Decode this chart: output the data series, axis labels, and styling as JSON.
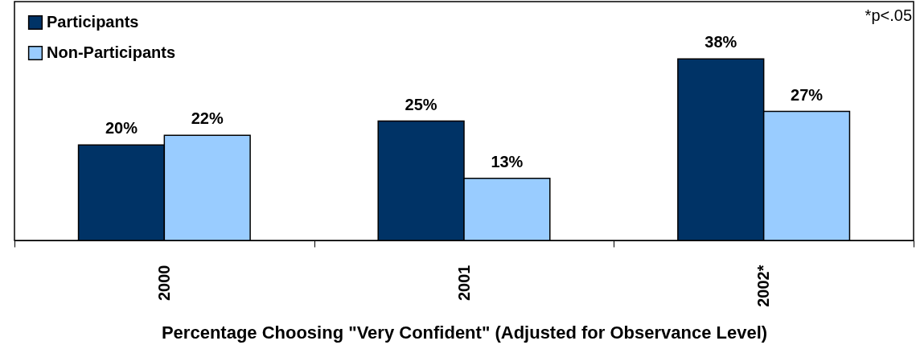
{
  "chart_data": {
    "type": "bar",
    "xlabel": "Percentage Choosing \"Very Confident\" (Adjusted for Observance Level)",
    "categories": [
      "2000",
      "2001",
      "2002*"
    ],
    "series": [
      {
        "name": "Participants",
        "color": "#003366",
        "values": [
          20,
          25,
          38
        ],
        "value_labels": [
          "20%",
          "25%",
          "38%"
        ]
      },
      {
        "name": "Non-Participants",
        "color": "#99ccff",
        "values": [
          22,
          13,
          27
        ],
        "value_labels": [
          "22%",
          "13%",
          "27%"
        ]
      }
    ],
    "ylim": [
      0,
      50
    ],
    "grid": false,
    "legend": "top left",
    "annotations": [
      "*p<.05"
    ]
  }
}
